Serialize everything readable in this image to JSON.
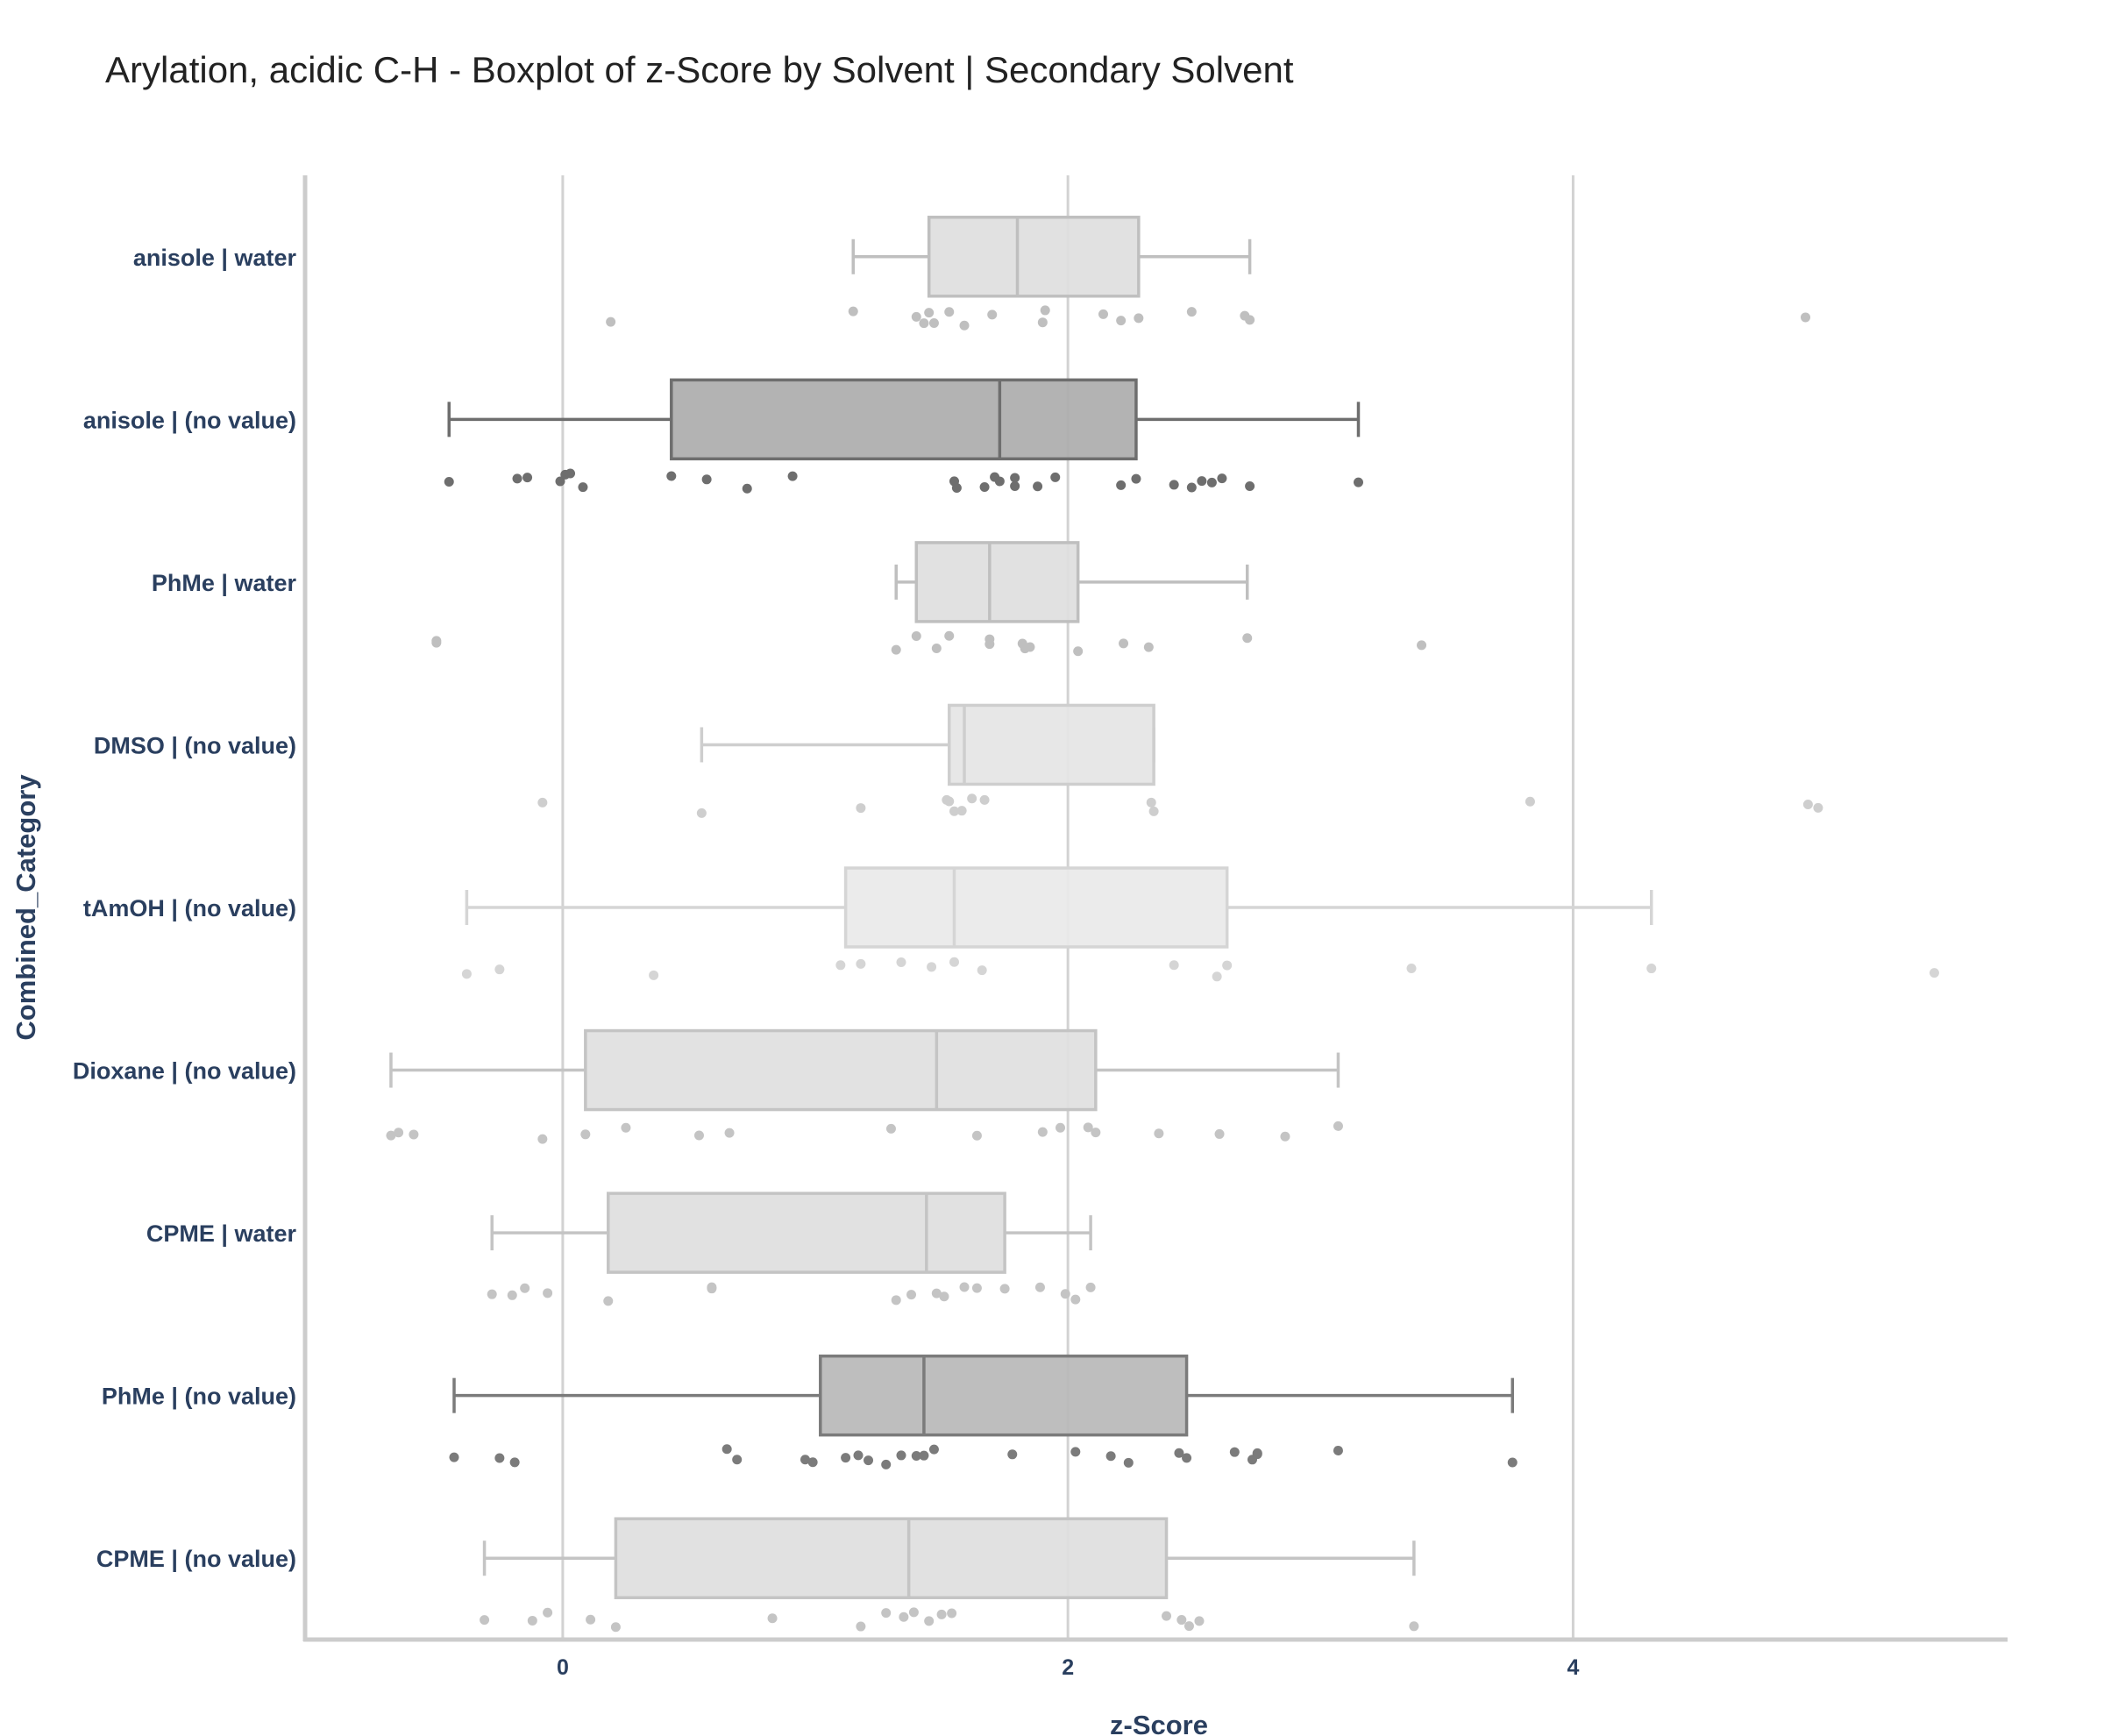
{
  "chart_data": {
    "type": "box",
    "orientation": "horizontal",
    "title": "Arylation, acidic C-H - Boxplot of z-Score by Solvent | Secondary Solvent",
    "xlabel": "z-Score",
    "ylabel": "Combined_Category",
    "xlim": [
      -1.02,
      5.72
    ],
    "xticks": [
      0,
      2,
      4
    ],
    "grid": "vertical",
    "legend": "none",
    "categories": [
      {
        "name": "anisole | water",
        "color": "#bfbfbf",
        "fill": "#dedede",
        "whisker_low": 1.15,
        "q1": 1.45,
        "median": 1.8,
        "q3": 2.28,
        "whisker_high": 2.72,
        "points": [
          0.19,
          1.15,
          1.4,
          1.43,
          1.45,
          1.47,
          1.53,
          1.59,
          1.7,
          1.9,
          1.91,
          2.14,
          2.21,
          2.28,
          2.49,
          2.7,
          2.72,
          4.92
        ]
      },
      {
        "name": "anisole | (no value)",
        "color": "#6e6e6e",
        "fill": "#adadad",
        "whisker_low": -0.45,
        "q1": 0.43,
        "median": 1.73,
        "q3": 2.27,
        "whisker_high": 3.15,
        "points": [
          -0.45,
          -0.18,
          -0.14,
          -0.01,
          0.01,
          0.03,
          0.08,
          0.43,
          0.57,
          0.73,
          0.91,
          1.55,
          1.56,
          1.67,
          1.71,
          1.73,
          1.79,
          1.79,
          1.88,
          1.95,
          2.21,
          2.27,
          2.42,
          2.49,
          2.53,
          2.57,
          2.61,
          2.72,
          3.15
        ]
      },
      {
        "name": "PhMe | water",
        "color": "#bfbfbf",
        "fill": "#dedede",
        "whisker_low": 1.32,
        "q1": 1.4,
        "median": 1.69,
        "q3": 2.04,
        "whisker_high": 2.71,
        "points": [
          -0.5,
          -0.5,
          1.32,
          1.4,
          1.48,
          1.53,
          1.69,
          1.69,
          1.82,
          1.83,
          1.85,
          2.04,
          2.22,
          2.32,
          2.71,
          3.4
        ]
      },
      {
        "name": "DMSO | (no value)",
        "color": "#cecece",
        "fill": "#e5e5e5",
        "whisker_low": 0.55,
        "q1": 1.53,
        "median": 1.59,
        "q3": 2.34,
        "whisker_high": 2.34,
        "points": [
          -0.08,
          0.55,
          1.18,
          1.52,
          1.53,
          1.55,
          1.58,
          1.62,
          1.67,
          2.33,
          2.34,
          3.83,
          4.93,
          4.97
        ]
      },
      {
        "name": "tAmOH | (no value)",
        "color": "#d5d5d5",
        "fill": "#e9e9e9",
        "whisker_low": -0.38,
        "q1": 1.12,
        "median": 1.55,
        "q3": 2.63,
        "whisker_high": 4.31,
        "points": [
          -0.38,
          -0.25,
          0.36,
          1.1,
          1.18,
          1.34,
          1.46,
          1.55,
          1.66,
          2.42,
          2.59,
          2.63,
          3.36,
          4.31,
          5.43
        ]
      },
      {
        "name": "Dioxane | (no value)",
        "color": "#c4c4c4",
        "fill": "#e0e0e0",
        "whisker_low": -0.68,
        "q1": 0.09,
        "median": 1.48,
        "q3": 2.11,
        "whisker_high": 3.07,
        "points": [
          -0.68,
          -0.65,
          -0.59,
          -0.08,
          0.09,
          0.25,
          0.54,
          0.66,
          1.3,
          1.64,
          1.9,
          1.97,
          2.08,
          2.11,
          2.36,
          2.6,
          2.86,
          3.07
        ]
      },
      {
        "name": "CPME | water",
        "color": "#c4c4c4",
        "fill": "#dedede",
        "whisker_low": -0.28,
        "q1": 0.18,
        "median": 1.44,
        "q3": 1.75,
        "whisker_high": 2.09,
        "points": [
          -0.28,
          -0.2,
          -0.15,
          -0.06,
          0.18,
          0.59,
          0.59,
          1.32,
          1.38,
          1.48,
          1.51,
          1.59,
          1.64,
          1.75,
          1.89,
          1.99,
          2.03,
          2.09
        ]
      },
      {
        "name": "PhMe | (no value)",
        "color": "#7b7b7b",
        "fill": "#b8b8b8",
        "whisker_low": -0.43,
        "q1": 1.02,
        "median": 1.43,
        "q3": 2.47,
        "whisker_high": 3.76,
        "points": [
          -0.43,
          -0.25,
          -0.19,
          0.65,
          0.69,
          0.96,
          0.99,
          1.12,
          1.17,
          1.21,
          1.28,
          1.34,
          1.4,
          1.43,
          1.47,
          1.78,
          2.03,
          2.17,
          2.24,
          2.44,
          2.47,
          2.66,
          2.73,
          2.75,
          2.75,
          3.07,
          3.76
        ]
      },
      {
        "name": "CPME | (no value)",
        "color": "#c4c4c4",
        "fill": "#dedede",
        "whisker_low": -0.31,
        "q1": 0.21,
        "median": 1.37,
        "q3": 2.39,
        "whisker_high": 3.37,
        "points": [
          -0.31,
          -0.12,
          -0.06,
          0.11,
          0.21,
          0.83,
          1.18,
          1.28,
          1.35,
          1.39,
          1.45,
          1.5,
          1.54,
          2.39,
          2.45,
          2.48,
          2.52,
          3.37
        ]
      }
    ]
  }
}
